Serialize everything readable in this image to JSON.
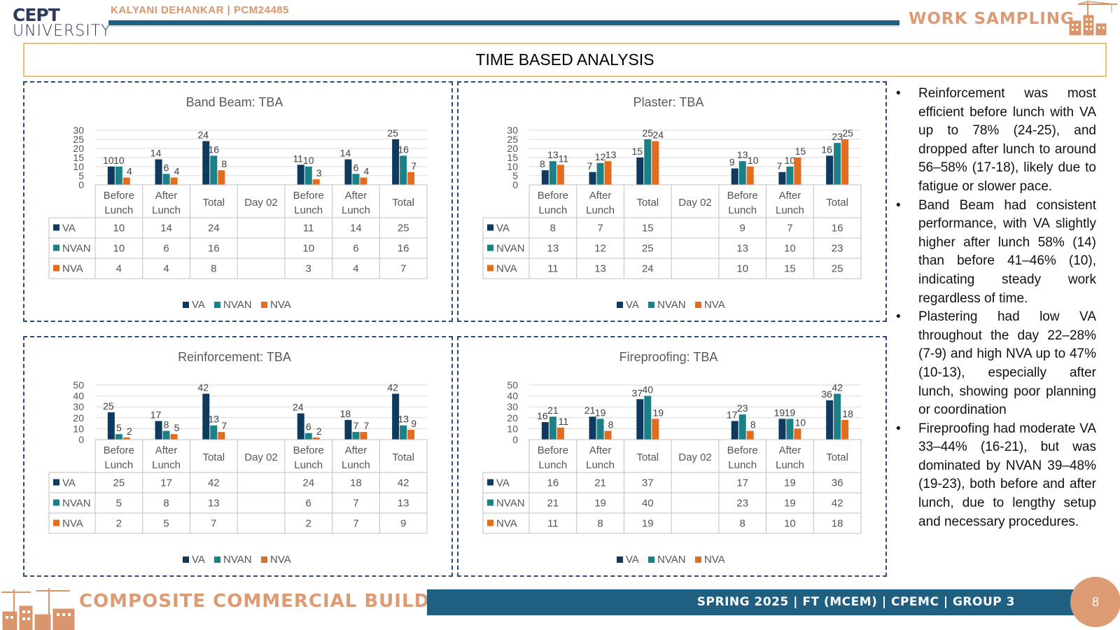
{
  "header": {
    "logo_line1": "CEPT",
    "logo_line2": "UNIVERSITY",
    "author": "KALYANI DEHANKAR | PCM24485",
    "section": "WORK SAMPLING"
  },
  "page_title": "TIME BASED ANALYSIS",
  "colors": {
    "VA": "#0d3a5e",
    "NVAN": "#1c8187",
    "NVA": "#e46c1f",
    "accent": "#dd9b73",
    "bar": "#1f5f82"
  },
  "chart_data": [
    {
      "type": "bar",
      "title": "Band Beam: TBA",
      "categories": [
        [
          "Before",
          "Lunch"
        ],
        [
          "After",
          "Lunch"
        ],
        [
          "Total"
        ],
        [
          "Day 02"
        ],
        [
          "Before",
          "Lunch"
        ],
        [
          "After",
          "Lunch"
        ],
        [
          "Total"
        ]
      ],
      "yticks": [
        0,
        5,
        10,
        15,
        20,
        25,
        30
      ],
      "ylim": [
        0,
        30
      ],
      "series": [
        {
          "name": "VA",
          "values": [
            10,
            14,
            24,
            null,
            11,
            14,
            25
          ]
        },
        {
          "name": "NVAN",
          "values": [
            10,
            6,
            16,
            null,
            10,
            6,
            16
          ]
        },
        {
          "name": "NVA",
          "values": [
            4,
            4,
            8,
            null,
            3,
            4,
            7
          ]
        }
      ],
      "legend": "bottom",
      "data_table": true
    },
    {
      "type": "bar",
      "title": "Plaster: TBA",
      "categories": [
        [
          "Before",
          "Lunch"
        ],
        [
          "After",
          "Lunch"
        ],
        [
          "Total"
        ],
        [
          "Day 02"
        ],
        [
          "Before",
          "Lunch"
        ],
        [
          "After",
          "Lunch"
        ],
        [
          "Total"
        ]
      ],
      "yticks": [
        0,
        5,
        10,
        15,
        20,
        25,
        30
      ],
      "ylim": [
        0,
        30
      ],
      "series": [
        {
          "name": "VA",
          "values": [
            8,
            7,
            15,
            null,
            9,
            7,
            16
          ]
        },
        {
          "name": "NVAN",
          "values": [
            13,
            12,
            25,
            null,
            13,
            10,
            23
          ]
        },
        {
          "name": "NVA",
          "values": [
            11,
            13,
            24,
            null,
            10,
            15,
            25
          ]
        }
      ],
      "legend": "bottom",
      "data_table": true
    },
    {
      "type": "bar",
      "title": "Reinforcement: TBA",
      "categories": [
        [
          "Before",
          "Lunch"
        ],
        [
          "After",
          "Lunch"
        ],
        [
          "Total"
        ],
        [
          "Day 02"
        ],
        [
          "Before",
          "Lunch"
        ],
        [
          "After",
          "Lunch"
        ],
        [
          "Total"
        ]
      ],
      "yticks": [
        0,
        10,
        20,
        30,
        40,
        50
      ],
      "ylim": [
        0,
        50
      ],
      "series": [
        {
          "name": "VA",
          "values": [
            25,
            17,
            42,
            null,
            24,
            18,
            42
          ]
        },
        {
          "name": "NVAN",
          "values": [
            5,
            8,
            13,
            null,
            6,
            7,
            13
          ]
        },
        {
          "name": "NVA",
          "values": [
            2,
            5,
            7,
            null,
            2,
            7,
            9
          ]
        }
      ],
      "legend": "bottom",
      "data_table": true
    },
    {
      "type": "bar",
      "title": "Fireproofing: TBA",
      "categories": [
        [
          "Before",
          "Lunch"
        ],
        [
          "After",
          "Lunch"
        ],
        [
          "Total"
        ],
        [
          "Day 02"
        ],
        [
          "Before",
          "Lunch"
        ],
        [
          "After",
          "Lunch"
        ],
        [
          "Total"
        ]
      ],
      "yticks": [
        0,
        10,
        20,
        30,
        40,
        50
      ],
      "ylim": [
        0,
        50
      ],
      "series": [
        {
          "name": "VA",
          "values": [
            16,
            21,
            37,
            null,
            17,
            19,
            36
          ]
        },
        {
          "name": "NVAN",
          "values": [
            21,
            19,
            40,
            null,
            23,
            19,
            42
          ]
        },
        {
          "name": "NVA",
          "values": [
            11,
            8,
            19,
            null,
            8,
            10,
            18
          ]
        }
      ],
      "legend": "bottom",
      "data_table": true
    }
  ],
  "notes": [
    "Reinforcement was most efficient before lunch with VA up to 78% (24-25), and dropped after lunch to around 56–58% (17-18), likely due to fatigue or slower pace.",
    "Band Beam had consistent performance, with VA slightly higher after lunch 58% (14) than before 41–46% (10), indicating steady work regardless of time.",
    "Plastering had low VA throughout the day 22–28% (7-9) and high NVA up to 47% (10-13), especially after lunch, showing poor planning or coordination",
    "Fireproofing had moderate VA 33–44% (16-21), but was dominated by NVAN 39–48% (19-23), both before and after lunch, due to lengthy setup and necessary procedures."
  ],
  "bullet_glyph": "•",
  "footer": {
    "project": "COMPOSITE COMMERCIAL BUILDING",
    "info": "SPRING 2025 | FT (MCEM) | CPEMC | GROUP 3",
    "page_number": "8"
  }
}
